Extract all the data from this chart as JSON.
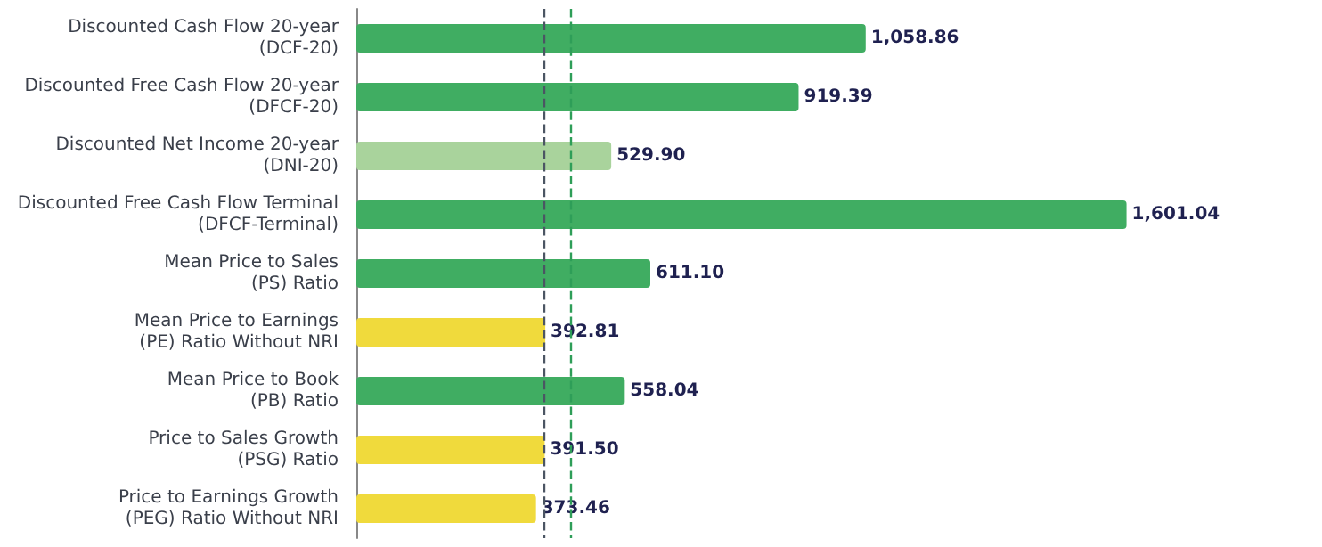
{
  "chart_data": {
    "type": "bar",
    "orientation": "horizontal",
    "categories": [
      "Discounted Cash Flow 20-year\n(DCF-20)",
      "Discounted Free Cash Flow 20-year\n(DFCF-20)",
      "Discounted Net Income 20-year\n(DNI-20)",
      "Discounted Free Cash Flow Terminal\n(DFCF-Terminal)",
      "Mean Price to Sales\n(PS) Ratio",
      "Mean Price to Earnings\n(PE) Ratio Without NRI",
      "Mean Price to Book\n(PB) Ratio",
      "Price to Sales Growth\n(PSG) Ratio",
      "Price to Earnings Growth\n(PEG) Ratio Without NRI"
    ],
    "values": [
      1058.86,
      919.39,
      529.9,
      1601.04,
      611.1,
      392.81,
      558.04,
      391.5,
      373.46
    ],
    "value_labels": [
      "1,058.86",
      "919.39",
      "529.90",
      "1,601.04",
      "611.10",
      "392.81",
      "558.04",
      "391.50",
      "373.46"
    ],
    "colors": [
      "#40ad62",
      "#40ad62",
      "#a9d39c",
      "#40ad62",
      "#40ad62",
      "#f0da3c",
      "#40ad62",
      "#f0da3c",
      "#f0da3c"
    ],
    "ref_lines": [
      {
        "axis": "x",
        "value": 388,
        "color": "#4b5563",
        "line_style": "dashed"
      },
      {
        "axis": "x",
        "value": 446,
        "color": "#2e9e58",
        "line_style": "dashed"
      }
    ]
  }
}
